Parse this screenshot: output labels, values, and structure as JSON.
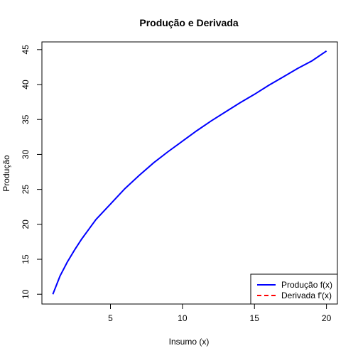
{
  "chart_data": {
    "type": "line",
    "title": "Produção e Derivada",
    "xlabel": "Insumo (x)",
    "ylabel": "Produção",
    "xlim": [
      0.24,
      20.76
    ],
    "ylim": [
      8.6,
      46.1
    ],
    "x_ticks": [
      5,
      10,
      15,
      20
    ],
    "y_ticks": [
      10,
      15,
      20,
      25,
      30,
      35,
      40,
      45
    ],
    "grid": false,
    "legend_position": "bottom-right",
    "series": [
      {
        "name": "Produção f(x)",
        "color": "#0000ff",
        "line_style": "solid",
        "x": [
          1,
          1.5,
          2,
          2.5,
          3,
          3.5,
          4,
          5,
          6,
          7,
          8,
          9,
          10,
          11,
          12,
          13,
          14,
          15,
          16,
          17,
          18,
          19,
          20
        ],
        "y": [
          10.0,
          12.6,
          14.6,
          16.3,
          17.9,
          19.3,
          20.7,
          22.9,
          25.1,
          27.0,
          28.8,
          30.4,
          31.9,
          33.4,
          34.8,
          36.1,
          37.4,
          38.6,
          39.9,
          41.1,
          42.3,
          43.4,
          44.8
        ]
      },
      {
        "name": "Derivada f'(x)",
        "color": "#ff0000",
        "line_style": "dashed",
        "x": [],
        "y": []
      }
    ]
  }
}
